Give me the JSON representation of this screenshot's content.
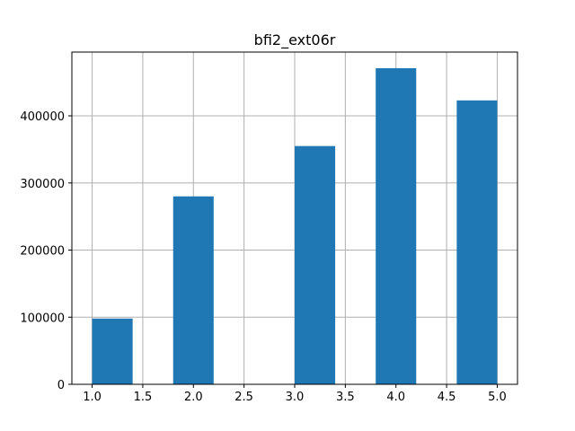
{
  "chart_data": {
    "type": "bar",
    "title": "bfi2_ext06r",
    "xlabel": "",
    "ylabel": "",
    "xlim": [
      0.8,
      5.2
    ],
    "ylim": [
      0,
      495000
    ],
    "grid": true,
    "bar_color": "#1f77b4",
    "bins": [
      {
        "x0": 1.0,
        "x1": 1.4,
        "value": 98000
      },
      {
        "x0": 1.4,
        "x1": 1.8,
        "value": 0
      },
      {
        "x0": 1.8,
        "x1": 2.2,
        "value": 280000
      },
      {
        "x0": 2.2,
        "x1": 2.6,
        "value": 0
      },
      {
        "x0": 2.6,
        "x1": 3.0,
        "value": 0
      },
      {
        "x0": 3.0,
        "x1": 3.4,
        "value": 355000
      },
      {
        "x0": 3.4,
        "x1": 3.8,
        "value": 0
      },
      {
        "x0": 3.8,
        "x1": 4.2,
        "value": 471000
      },
      {
        "x0": 4.2,
        "x1": 4.6,
        "value": 0
      },
      {
        "x0": 4.6,
        "x1": 5.0,
        "value": 423000
      }
    ],
    "xticks": [
      1.0,
      1.5,
      2.0,
      2.5,
      3.0,
      3.5,
      4.0,
      4.5,
      5.0
    ],
    "xtick_labels": [
      "1.0",
      "1.5",
      "2.0",
      "2.5",
      "3.0",
      "3.5",
      "4.0",
      "4.5",
      "5.0"
    ],
    "yticks": [
      0,
      100000,
      200000,
      300000,
      400000
    ],
    "ytick_labels": [
      "0",
      "100000",
      "200000",
      "300000",
      "400000"
    ]
  }
}
